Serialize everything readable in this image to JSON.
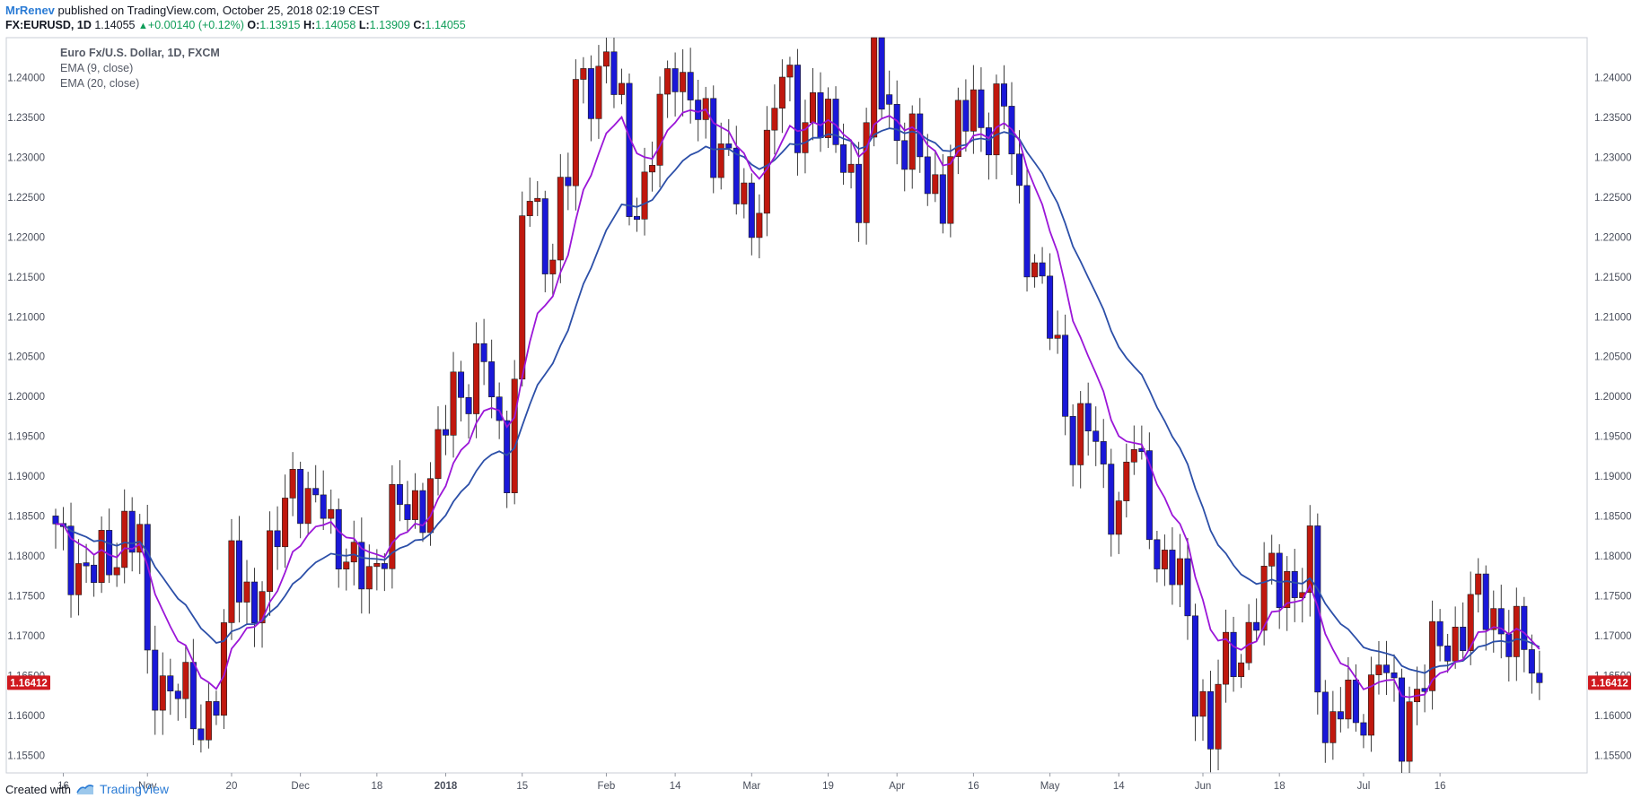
{
  "header": {
    "author": "MrRenev",
    "published": "published on TradingView.com, October 25, 2018 02:19 CEST",
    "symbol": "FX:EURUSD, 1D",
    "last": "1.14055",
    "change": "+0.00140 (+0.12%)",
    "open_label": "O:",
    "open": "1.13915",
    "high_label": "H:",
    "high": "1.14058",
    "low_label": "L:",
    "low": "1.13909",
    "close_label": "C:",
    "close": "1.14055"
  },
  "legend": {
    "title": "Euro Fx/U.S. Dollar, 1D, FXCM",
    "ema9": "EMA (9, close)",
    "ema20": "EMA (20, close)"
  },
  "footer": {
    "created": "Created with",
    "brand": "TradingView",
    "logo_icon": "tradingview-logo-icon"
  },
  "chart_data": {
    "type": "candlestick",
    "yticks": [
      "1.15500",
      "1.16000",
      "1.16500",
      "1.17000",
      "1.17500",
      "1.18000",
      "1.18500",
      "1.19000",
      "1.19500",
      "1.20000",
      "1.20500",
      "1.21000",
      "1.21500",
      "1.22000",
      "1.22500",
      "1.23000",
      "1.23500",
      "1.24000"
    ],
    "ylim": [
      1.1528,
      1.245
    ],
    "price_marker": "1.16412",
    "xticks": [
      {
        "label": "16",
        "bar": 1
      },
      {
        "label": "Nov",
        "bar": 12
      },
      {
        "label": "20",
        "bar": 23
      },
      {
        "label": "Dec",
        "bar": 32
      },
      {
        "label": "18",
        "bar": 42
      },
      {
        "label": "2018",
        "bar": 51,
        "bold": true
      },
      {
        "label": "15",
        "bar": 61
      },
      {
        "label": "Feb",
        "bar": 72
      },
      {
        "label": "14",
        "bar": 81
      },
      {
        "label": "Mar",
        "bar": 91
      },
      {
        "label": "19",
        "bar": 101
      },
      {
        "label": "Apr",
        "bar": 110
      },
      {
        "label": "16",
        "bar": 120
      },
      {
        "label": "May",
        "bar": 130
      },
      {
        "label": "14",
        "bar": 139
      },
      {
        "label": "Jun",
        "bar": 150
      },
      {
        "label": "18",
        "bar": 160
      },
      {
        "label": "Jul",
        "bar": 171
      },
      {
        "label": "16",
        "bar": 181
      }
    ],
    "colors": {
      "up": "#c0180e",
      "down": "#1a18d8",
      "ema9": "#9b16d8",
      "ema20": "#2c4fa8",
      "marker": "#d0191f"
    },
    "anchors": [
      [
        0,
        1.182
      ],
      [
        3,
        1.179
      ],
      [
        5,
        1.1775
      ],
      [
        7,
        1.1795
      ],
      [
        9,
        1.184
      ],
      [
        11,
        1.181
      ],
      [
        12,
        1.1655
      ],
      [
        15,
        1.164
      ],
      [
        19,
        1.159
      ],
      [
        21,
        1.163
      ],
      [
        22,
        1.168
      ],
      [
        23,
        1.1795
      ],
      [
        26,
        1.174
      ],
      [
        28,
        1.178
      ],
      [
        30,
        1.188
      ],
      [
        31,
        1.191
      ],
      [
        33,
        1.1845
      ],
      [
        35,
        1.187
      ],
      [
        37,
        1.182
      ],
      [
        39,
        1.177
      ],
      [
        41,
        1.178
      ],
      [
        42,
        1.18
      ],
      [
        44,
        1.185
      ],
      [
        46,
        1.1855
      ],
      [
        48,
        1.1875
      ],
      [
        50,
        1.192
      ],
      [
        52,
        1.201
      ],
      [
        54,
        1.202
      ],
      [
        56,
        1.204
      ],
      [
        58,
        1.195
      ],
      [
        59,
        1.193
      ],
      [
        60,
        1.202
      ],
      [
        61,
        1.22
      ],
      [
        62,
        1.2255
      ],
      [
        64,
        1.2175
      ],
      [
        66,
        1.2245
      ],
      [
        67,
        1.227
      ],
      [
        68,
        1.238
      ],
      [
        70,
        1.24
      ],
      [
        72,
        1.242
      ],
      [
        74,
        1.235
      ],
      [
        75,
        1.225
      ],
      [
        77,
        1.226
      ],
      [
        79,
        1.235
      ],
      [
        81,
        1.243
      ],
      [
        82,
        1.24
      ],
      [
        84,
        1.235
      ],
      [
        86,
        1.23
      ],
      [
        87,
        1.234
      ],
      [
        88,
        1.23
      ],
      [
        90,
        1.223
      ],
      [
        91,
        1.218
      ],
      [
        92,
        1.227
      ],
      [
        94,
        1.238
      ],
      [
        95,
        1.24
      ],
      [
        97,
        1.233
      ],
      [
        99,
        1.238
      ],
      [
        101,
        1.233
      ],
      [
        102,
        1.23
      ],
      [
        103,
        1.231
      ],
      [
        105,
        1.225
      ],
      [
        106,
        1.234
      ],
      [
        107,
        1.242
      ],
      [
        108,
        1.24
      ],
      [
        110,
        1.233
      ],
      [
        112,
        1.231
      ],
      [
        114,
        1.227
      ],
      [
        116,
        1.226
      ],
      [
        118,
        1.233
      ],
      [
        120,
        1.237
      ],
      [
        122,
        1.234
      ],
      [
        124,
        1.236
      ],
      [
        126,
        1.225
      ],
      [
        127,
        1.22
      ],
      [
        129,
        1.212
      ],
      [
        131,
        1.205
      ],
      [
        133,
        1.195
      ],
      [
        135,
        1.196
      ],
      [
        137,
        1.19
      ],
      [
        139,
        1.186
      ],
      [
        141,
        1.194
      ],
      [
        143,
        1.185
      ],
      [
        145,
        1.178
      ],
      [
        147,
        1.177
      ],
      [
        149,
        1.165
      ],
      [
        150,
        1.162
      ],
      [
        151,
        1.1555
      ],
      [
        152,
        1.164
      ],
      [
        154,
        1.168
      ],
      [
        156,
        1.17
      ],
      [
        158,
        1.175
      ],
      [
        159,
        1.179
      ],
      [
        161,
        1.177
      ],
      [
        163,
        1.175
      ],
      [
        164,
        1.179
      ],
      [
        165,
        1.166
      ],
      [
        166,
        1.158
      ],
      [
        168,
        1.162
      ],
      [
        170,
        1.158
      ],
      [
        172,
        1.164
      ],
      [
        173,
        1.169
      ],
      [
        175,
        1.16
      ],
      [
        176,
        1.157
      ],
      [
        177,
        1.162
      ],
      [
        179,
        1.166
      ],
      [
        181,
        1.168
      ],
      [
        183,
        1.17
      ],
      [
        185,
        1.174
      ],
      [
        187,
        1.173
      ],
      [
        189,
        1.172
      ],
      [
        191,
        1.169
      ],
      [
        192,
        1.168
      ],
      [
        193,
        1.166
      ],
      [
        194,
        1.1641
      ]
    ]
  }
}
